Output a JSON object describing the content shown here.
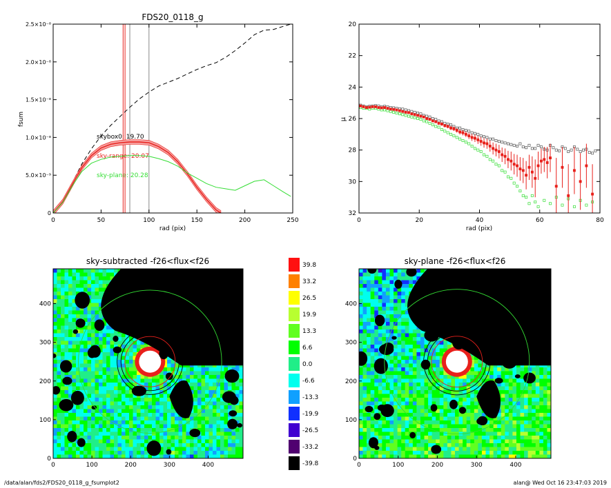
{
  "colors": {
    "red": "#e8201b",
    "green": "#33dd33",
    "black": "#000000",
    "gray": "#999999"
  },
  "footer": {
    "left": "/data/alan/fds2/FDS20_0118_g_fsumplot2",
    "right": "alan@  Wed Oct 16 23:47:03 2019"
  },
  "chart_data": [
    {
      "type": "line",
      "title": "FDS20_0118_g",
      "xlabel": "rad (pix)",
      "ylabel": "fsum",
      "xlim": [
        0,
        250
      ],
      "ylim": [
        0,
        2.5e-08
      ],
      "x_ticks": [
        "0",
        "50",
        "100",
        "150",
        "200",
        "250"
      ],
      "y_ticks": [
        "0",
        "5.0×10⁻⁹",
        "1.0×10⁻⁸",
        "1.5×10⁻⁸",
        "2.0×10⁻⁸",
        "2.5×10⁻⁸"
      ],
      "vertical_lines": [
        {
          "x": 73,
          "color": "red"
        },
        {
          "x": 75,
          "color": "red"
        },
        {
          "x": 80,
          "color": "gray"
        },
        {
          "x": 100,
          "color": "gray"
        }
      ],
      "annotations": [
        {
          "text": "skybox0: 19.70",
          "x": 45,
          "y": 1e-08,
          "color": "black"
        },
        {
          "text": "sky-range: 20.07",
          "x": 45,
          "y": 7.5e-09,
          "color": "red"
        },
        {
          "text": "sky-plane: 20.28",
          "x": 45,
          "y": 5e-09,
          "color": "green"
        }
      ],
      "series": [
        {
          "style": "dashed",
          "color": "black",
          "x": [
            0,
            10,
            20,
            30,
            40,
            50,
            60,
            70,
            80,
            90,
            100,
            110,
            120,
            130,
            140,
            150,
            160,
            170,
            180,
            190,
            200,
            210,
            220,
            230,
            240,
            248
          ],
          "y": [
            0,
            1.5e-09,
            4e-09,
            6.5e-09,
            8.5e-09,
            1.02e-08,
            1.16e-08,
            1.28e-08,
            1.4e-08,
            1.51e-08,
            1.6e-08,
            1.68e-08,
            1.73e-08,
            1.78e-08,
            1.84e-08,
            1.9e-08,
            1.95e-08,
            1.99e-08,
            2.06e-08,
            2.15e-08,
            2.25e-08,
            2.36e-08,
            2.42e-08,
            2.43e-08,
            2.47e-08,
            2.5e-08
          ]
        },
        {
          "style": "solid",
          "color": "red",
          "errorband": true,
          "x": [
            0,
            10,
            20,
            30,
            40,
            50,
            60,
            70,
            80,
            90,
            100,
            110,
            120,
            130,
            140,
            150,
            160,
            170,
            175
          ],
          "y": [
            0,
            1.5e-09,
            3.8e-09,
            6e-09,
            7.6e-09,
            8.6e-09,
            9.1e-09,
            9.3e-09,
            9.4e-09,
            9.4e-09,
            9.3e-09,
            8.8e-09,
            8e-09,
            6.8e-09,
            5.2e-09,
            3.4e-09,
            1.8e-09,
            4e-10,
            0
          ]
        },
        {
          "style": "solid",
          "color": "green",
          "x": [
            0,
            10,
            20,
            30,
            40,
            50,
            60,
            70,
            80,
            90,
            100,
            110,
            120,
            130,
            140,
            150,
            160,
            170,
            180,
            190,
            200,
            210,
            220,
            230,
            240,
            248
          ],
          "y": [
            0,
            1.4e-09,
            3.6e-09,
            5.5e-09,
            6.6e-09,
            7.1e-09,
            7.4e-09,
            7.5e-09,
            7.6e-09,
            7.6e-09,
            7.5e-09,
            7.2e-09,
            6.8e-09,
            6.2e-09,
            5.3e-09,
            4.6e-09,
            3.9e-09,
            3.4e-09,
            3.2e-09,
            3e-09,
            3.6e-09,
            4.2e-09,
            4.4e-09,
            3.6e-09,
            2.8e-09,
            2.2e-09
          ]
        }
      ]
    },
    {
      "type": "scatter",
      "title": "",
      "xlabel": "rad (pix)",
      "ylabel": "μ",
      "xlim": [
        0,
        80
      ],
      "ylim": [
        32,
        20
      ],
      "x_ticks": [
        "0",
        "20",
        "40",
        "60",
        "80"
      ],
      "y_ticks": [
        "20",
        "22",
        "24",
        "26",
        "28",
        "30",
        "32"
      ],
      "series": [
        {
          "color": "black",
          "marker": "square-open",
          "x": [
            0.5,
            1.5,
            2.5,
            3.5,
            4.5,
            5.5,
            6.5,
            7.5,
            8.5,
            9.5,
            10.5,
            11.5,
            12.5,
            13.5,
            14.5,
            15.5,
            16.5,
            17.5,
            18.5,
            19.5,
            20.5,
            21.5,
            22.5,
            23.5,
            24.5,
            25.5,
            26.5,
            27.5,
            28.5,
            29.5,
            30.5,
            31.5,
            32.5,
            33.5,
            34.5,
            35.5,
            36.5,
            37.5,
            38.5,
            39.5,
            40.5,
            41.5,
            42.5,
            43.5,
            44.5,
            45.5,
            46.5,
            47.5,
            48.5,
            49.5,
            50.5,
            51.5,
            52.5,
            53.5,
            54.5,
            55.5,
            56.5,
            57.5,
            58.5,
            59.5,
            60.5,
            61.5,
            62.5,
            63.5,
            64.5,
            65.5,
            66.5,
            67.5,
            68.5,
            69.5,
            70.5,
            71.5,
            72.5,
            73.5,
            74.5,
            75.5,
            76.5,
            77.5,
            78.5
          ],
          "y": [
            25.15,
            25.2,
            25.25,
            25.22,
            25.2,
            25.18,
            25.2,
            25.25,
            25.22,
            25.25,
            25.3,
            25.32,
            25.35,
            25.38,
            25.4,
            25.45,
            25.5,
            25.55,
            25.6,
            25.65,
            25.7,
            25.8,
            25.85,
            25.9,
            26.0,
            26.05,
            26.15,
            26.2,
            26.3,
            26.35,
            26.4,
            26.5,
            26.6,
            26.6,
            26.7,
            26.75,
            26.8,
            26.9,
            26.95,
            27.0,
            27.1,
            27.15,
            27.2,
            27.3,
            27.3,
            27.4,
            27.45,
            27.5,
            27.55,
            27.6,
            27.65,
            27.7,
            27.75,
            27.6,
            27.8,
            27.85,
            27.7,
            27.9,
            27.9,
            27.7,
            27.8,
            27.95,
            28.0,
            27.7,
            27.85,
            28.0,
            28.05,
            27.8,
            27.9,
            28.1,
            28.0,
            27.8,
            27.95,
            28.1,
            28.0,
            27.95,
            28.15,
            28.2,
            28.05
          ]
        },
        {
          "color": "green",
          "marker": "square-open",
          "x": [
            0.5,
            1.5,
            2.5,
            3.5,
            4.5,
            5.5,
            6.5,
            7.5,
            8.5,
            9.5,
            10.5,
            11.5,
            12.5,
            13.5,
            14.5,
            15.5,
            16.5,
            17.5,
            18.5,
            19.5,
            20.5,
            21.5,
            22.5,
            23.5,
            24.5,
            25.5,
            26.5,
            27.5,
            28.5,
            29.5,
            30.5,
            31.5,
            32.5,
            33.5,
            34.5,
            35.5,
            36.5,
            37.5,
            38.5,
            39.5,
            40.5,
            41.5,
            42.5,
            43.5,
            44.5,
            45.5,
            46.5,
            47.5,
            48.5,
            49.5,
            50.5,
            51.5,
            52.5,
            53.5,
            54.5,
            55.5,
            56.5,
            57.5,
            58.5,
            59.5,
            61.5,
            63.5,
            65.5,
            67.5,
            69.5,
            71.5,
            73.5,
            75.5,
            77.5
          ],
          "y": [
            25.3,
            25.35,
            25.35,
            25.4,
            25.35,
            25.35,
            25.4,
            25.45,
            25.45,
            25.5,
            25.55,
            25.6,
            25.65,
            25.7,
            25.75,
            25.8,
            25.85,
            25.9,
            25.95,
            26.0,
            26.05,
            26.15,
            26.2,
            26.3,
            26.4,
            26.5,
            26.55,
            26.7,
            26.8,
            26.9,
            27.0,
            27.1,
            27.2,
            27.3,
            27.4,
            27.5,
            27.6,
            27.75,
            27.9,
            28.0,
            28.1,
            28.3,
            28.4,
            28.6,
            28.7,
            28.9,
            29.0,
            29.3,
            29.4,
            29.7,
            29.8,
            30.1,
            30.3,
            30.6,
            30.9,
            31.0,
            31.4,
            30.9,
            31.3,
            31.6,
            31.2,
            31.4,
            31.0,
            31.5,
            31.1,
            31.6,
            31.2,
            31.5,
            31.3
          ]
        },
        {
          "color": "red",
          "marker": "square-filled",
          "errorbars": true,
          "x": [
            0.5,
            1.5,
            2.5,
            3.5,
            4.5,
            5.5,
            6.5,
            7.5,
            8.5,
            9.5,
            10.5,
            11.5,
            12.5,
            13.5,
            14.5,
            15.5,
            16.5,
            17.5,
            18.5,
            19.5,
            20.5,
            21.5,
            22.5,
            23.5,
            24.5,
            25.5,
            26.5,
            27.5,
            28.5,
            29.5,
            30.5,
            31.5,
            32.5,
            33.5,
            34.5,
            35.5,
            36.5,
            37.5,
            38.5,
            39.5,
            40.5,
            41.5,
            42.5,
            43.5,
            44.5,
            45.5,
            46.5,
            47.5,
            48.5,
            49.5,
            50.5,
            51.5,
            52.5,
            53.5,
            54.5,
            55.5,
            56.5,
            57.5,
            58.5,
            59.5,
            60.5,
            61.5,
            62.5,
            63.5,
            65.5,
            67.5,
            69.5,
            71.5,
            73.5,
            75.5,
            77.5
          ],
          "y": [
            25.2,
            25.25,
            25.3,
            25.28,
            25.25,
            25.25,
            25.3,
            25.32,
            25.3,
            25.35,
            25.4,
            25.42,
            25.45,
            25.5,
            25.55,
            25.6,
            25.62,
            25.7,
            25.75,
            25.8,
            25.85,
            25.9,
            26.0,
            26.05,
            26.15,
            26.2,
            26.3,
            26.35,
            26.45,
            26.5,
            26.6,
            26.65,
            26.75,
            26.85,
            26.9,
            27.0,
            27.1,
            27.2,
            27.25,
            27.35,
            27.45,
            27.55,
            27.6,
            27.75,
            27.9,
            28.0,
            28.1,
            28.3,
            28.4,
            28.6,
            28.7,
            28.9,
            29.0,
            29.2,
            29.3,
            29.6,
            29.1,
            29.4,
            29.8,
            29.0,
            28.7,
            28.6,
            28.8,
            28.5,
            30.3,
            29.1,
            30.9,
            29.3,
            30.0,
            29.0,
            30.8
          ],
          "err": [
            0.02,
            0.02,
            0.02,
            0.02,
            0.02,
            0.02,
            0.03,
            0.03,
            0.03,
            0.03,
            0.03,
            0.03,
            0.03,
            0.04,
            0.04,
            0.04,
            0.05,
            0.05,
            0.05,
            0.06,
            0.06,
            0.07,
            0.07,
            0.08,
            0.08,
            0.09,
            0.1,
            0.1,
            0.11,
            0.12,
            0.13,
            0.14,
            0.15,
            0.16,
            0.17,
            0.18,
            0.2,
            0.22,
            0.24,
            0.26,
            0.28,
            0.3,
            0.32,
            0.35,
            0.38,
            0.4,
            0.43,
            0.46,
            0.5,
            0.55,
            0.6,
            0.65,
            0.7,
            0.75,
            0.8,
            0.9,
            0.8,
            1.0,
            1.2,
            0.9,
            0.8,
            0.8,
            1.0,
            0.9,
            1.8,
            1.3,
            2.0,
            1.5,
            1.8,
            1.4,
            1.9
          ]
        }
      ]
    },
    {
      "type": "heatmap",
      "title": "sky-subtracted -f26<flux<f26",
      "xlim": [
        0,
        490
      ],
      "ylim": [
        0,
        490
      ],
      "x_ticks": [
        "0",
        "100",
        "200",
        "300",
        "400"
      ],
      "y_ticks": [
        "0",
        "100",
        "200",
        "300",
        "400"
      ],
      "source_center": [
        250,
        250
      ],
      "circles": [
        {
          "r": 65,
          "color": "red"
        },
        {
          "r": 75,
          "color": "black"
        },
        {
          "r": 85,
          "color": "black"
        },
        {
          "r": 185,
          "color": "green"
        }
      ]
    },
    {
      "type": "heatmap",
      "title": "sky-plane -f26<flux<f26",
      "xlim": [
        0,
        490
      ],
      "ylim": [
        0,
        490
      ],
      "x_ticks": [
        "0",
        "100",
        "200",
        "300",
        "400"
      ],
      "y_ticks": [
        "0",
        "100",
        "200",
        "300",
        "400"
      ],
      "source_center": [
        250,
        250
      ],
      "circles": [
        {
          "r": 65,
          "color": "red"
        },
        {
          "r": 75,
          "color": "black"
        },
        {
          "r": 85,
          "color": "black"
        },
        {
          "r": 185,
          "color": "green"
        }
      ]
    }
  ],
  "colorbar": {
    "labels": [
      "39.8",
      "33.2",
      "26.5",
      "19.9",
      "13.3",
      "6.6",
      "0.0",
      "-6.6",
      "-13.3",
      "-19.9",
      "-26.5",
      "-33.2",
      "-39.8"
    ],
    "colors": [
      "#ff1010",
      "#ff8000",
      "#ffff00",
      "#b8ff30",
      "#60ff20",
      "#00ff00",
      "#20ee88",
      "#00ffee",
      "#10a0ff",
      "#1030ff",
      "#4000d0",
      "#500070",
      "#000000"
    ]
  }
}
